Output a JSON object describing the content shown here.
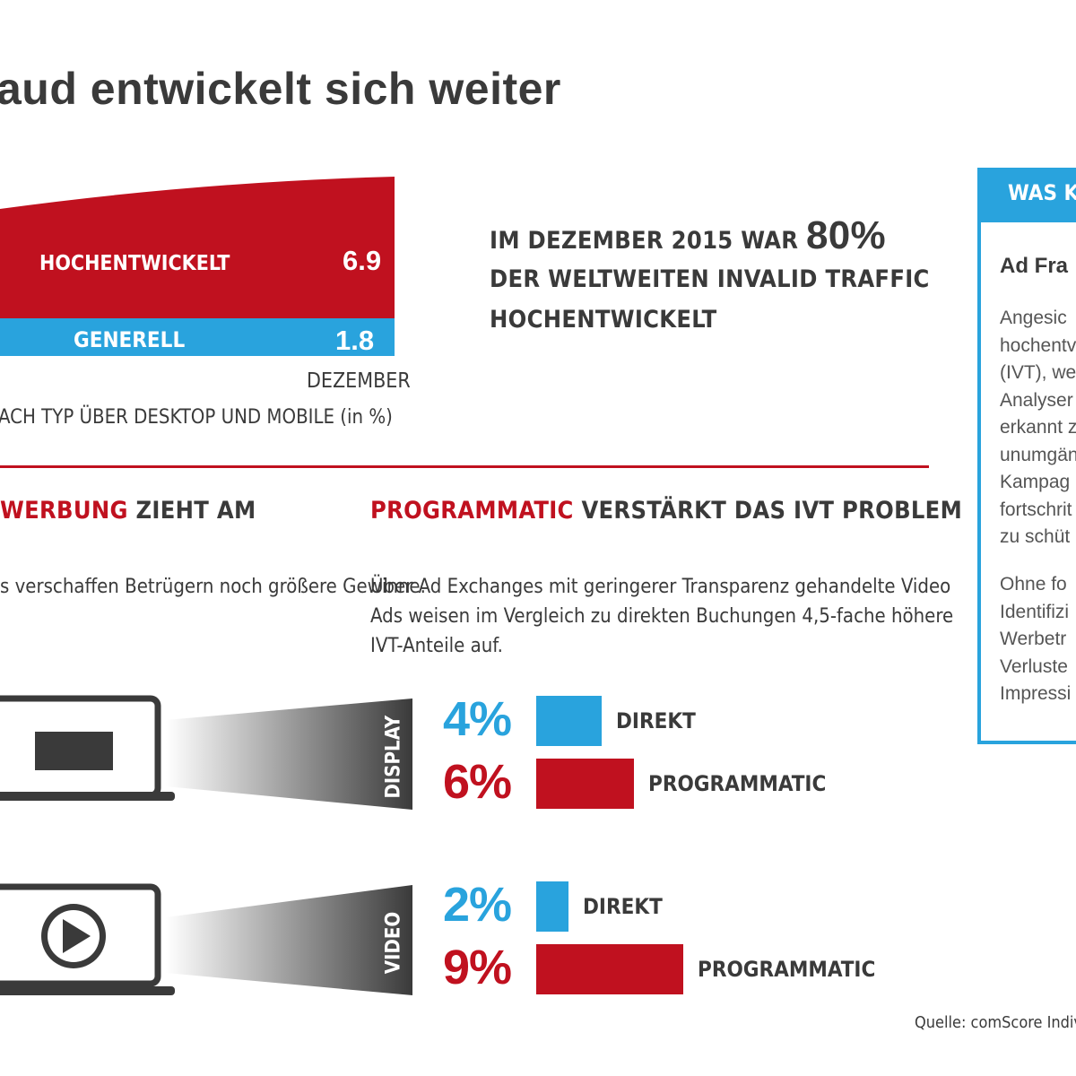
{
  "title": "aud entwickelt sich weiter",
  "top_chart": {
    "label_hoch": "HOCHENTWICKELT",
    "value_hoch": "6.9",
    "label_generell": "GENERELL",
    "value_generell": "1.8",
    "month_label": "DEZEMBER",
    "footnote": "ACH TYP ÜBER DESKTOP UND MOBILE (in %)",
    "colors": {
      "hoch": "#c0111f",
      "generell": "#29a3dd"
    }
  },
  "stat": {
    "line1_prefix": "IM DEZEMBER 2015 WAR",
    "line1_big": "80%",
    "line2": "DER WELTWEITEN INVALID TRAFFIC",
    "line3": "HOCHENTWICKELT"
  },
  "section_left": {
    "head_red": "WERBUNG",
    "head_rest": " ZIEHT AM",
    "body": "s verschaffen Betrügern noch größere Gewinne."
  },
  "section_right": {
    "head_red": "PROGRAMMATIC",
    "head_rest": " VERSTÄRKT DAS IVT PROBLEM",
    "body_lines": [
      "Über Ad Exchanges mit geringerer Transparenz gehandelte Video",
      "Ads weisen im Vergleich zu direkten Buchungen 4,5-fache höhere",
      "IVT-Anteile auf."
    ]
  },
  "chart_data": {
    "type": "bar",
    "orientation": "horizontal",
    "groups": [
      {
        "name": "DISPLAY",
        "bars": [
          {
            "label": "DIREKT",
            "value": 4,
            "display": "4%",
            "color": "#29a3dd"
          },
          {
            "label": "PROGRAMMATIC",
            "value": 6,
            "display": "6%",
            "color": "#c0111f"
          }
        ]
      },
      {
        "name": "VIDEO",
        "bars": [
          {
            "label": "DIREKT",
            "value": 2,
            "display": "2%",
            "color": "#29a3dd"
          },
          {
            "label": "PROGRAMMATIC",
            "value": 9,
            "display": "9%",
            "color": "#c0111f"
          }
        ]
      }
    ]
  },
  "sidebar": {
    "header": "WAS KA",
    "title": "Ad Fra",
    "para1": [
      "Angesic",
      "hochentv",
      "(IVT), we",
      "Analyser",
      "erkannt z",
      "unumgän",
      "Kampag",
      "fortschrit",
      "zu schüt"
    ],
    "para2": [
      "Ohne fo",
      "Identifizi",
      "Werbetr",
      "Verluste",
      "Impressi"
    ]
  },
  "source": "Quelle: comScore Individuel",
  "icons": {
    "display": "monitor-icon",
    "video": "play-icon"
  }
}
